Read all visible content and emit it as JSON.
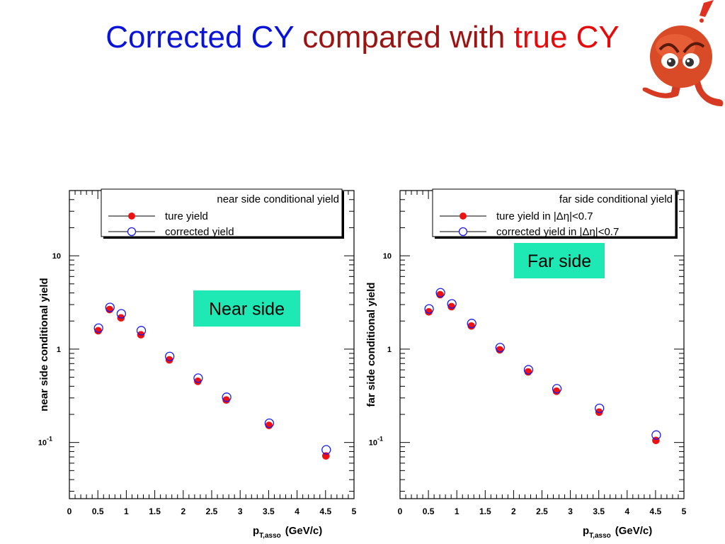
{
  "slide": {
    "title_parts": [
      {
        "text": "Corrected CY",
        "color": "#0a14d8"
      },
      {
        "text": "compared with",
        "color": "#9b1414"
      },
      {
        "text": "true CY",
        "color": "#e60a0a"
      }
    ]
  },
  "icons": {
    "mascot": "angry-face-mascot-icon"
  },
  "colors": {
    "true_marker": "#ee1111",
    "corrected_marker": "#1a1aee",
    "annotation_bg": "#1ee8b4"
  },
  "chart_data": [
    {
      "type": "scatter",
      "title": "near side conditional yield",
      "xlabel": "p_T,asso (GeV/c)",
      "xlabel_main": "p",
      "xlabel_sub": "T,asso",
      "xlabel_unit": "(GeV/c)",
      "ylabel": "near side conditional yield",
      "xlim": [
        0,
        5
      ],
      "ylim": [
        0.025,
        50
      ],
      "yscale": "log",
      "xticks": [
        "0",
        "0.5",
        "1",
        "1.5",
        "2",
        "2.5",
        "3",
        "3.5",
        "4",
        "4.5",
        "5"
      ],
      "yticks": [
        {
          "value": 0.1,
          "base": "10",
          "exp": "-1"
        },
        {
          "value": 1,
          "base": "1",
          "exp": ""
        },
        {
          "value": 10,
          "base": "10",
          "exp": ""
        }
      ],
      "legend": {
        "placement": "top-right",
        "header": "near side conditional yield",
        "entries": [
          "ture yield",
          "corrected yield"
        ]
      },
      "annotation": "Near side",
      "series": [
        {
          "name": "ture yield",
          "marker": "filled-circle",
          "x": [
            0.5,
            0.7,
            0.9,
            1.25,
            1.75,
            2.25,
            2.75,
            3.5,
            4.5
          ],
          "y": [
            1.6,
            2.7,
            2.2,
            1.45,
            0.78,
            0.46,
            0.29,
            0.155,
            0.073
          ]
        },
        {
          "name": "corrected yield",
          "marker": "open-circle",
          "x": [
            0.5,
            0.7,
            0.9,
            1.25,
            1.75,
            2.25,
            2.75,
            3.5,
            4.5
          ],
          "y": [
            1.65,
            2.75,
            2.35,
            1.55,
            0.82,
            0.48,
            0.3,
            0.158,
            0.082
          ]
        }
      ]
    },
    {
      "type": "scatter",
      "title": "far side conditional yield",
      "xlabel": "p_T,asso (GeV/c)",
      "xlabel_main": "p",
      "xlabel_sub": "T,asso",
      "xlabel_unit": "(GeV/c)",
      "ylabel": "far side conditional yield",
      "xlim": [
        0,
        5
      ],
      "ylim": [
        0.025,
        50
      ],
      "yscale": "log",
      "xticks": [
        "0",
        "0.5",
        "1",
        "1.5",
        "2",
        "2.5",
        "3",
        "3.5",
        "4",
        "4.5",
        "5"
      ],
      "yticks": [
        {
          "value": 0.1,
          "base": "10",
          "exp": "-1"
        },
        {
          "value": 1,
          "base": "1",
          "exp": ""
        },
        {
          "value": 10,
          "base": "10",
          "exp": ""
        }
      ],
      "legend": {
        "placement": "top-right",
        "header": "far side conditional yield",
        "entries": [
          "ture yield in |Δη|<0.7",
          "corrected yield in |Δη|<0.7"
        ]
      },
      "annotation": "Far side",
      "series": [
        {
          "name": "ture yield in |Δη|<0.7",
          "marker": "filled-circle",
          "x": [
            0.5,
            0.7,
            0.9,
            1.25,
            1.75,
            2.25,
            2.75,
            3.5,
            4.5
          ],
          "y": [
            2.55,
            3.9,
            2.9,
            1.8,
            1.0,
            0.58,
            0.36,
            0.215,
            0.107
          ]
        },
        {
          "name": "corrected yield in |Δη|<0.7",
          "marker": "open-circle",
          "x": [
            0.5,
            0.7,
            0.9,
            1.25,
            1.75,
            2.25,
            2.75,
            3.5,
            4.5
          ],
          "y": [
            2.65,
            3.95,
            3.0,
            1.85,
            1.02,
            0.59,
            0.37,
            0.228,
            0.118
          ]
        }
      ]
    }
  ]
}
